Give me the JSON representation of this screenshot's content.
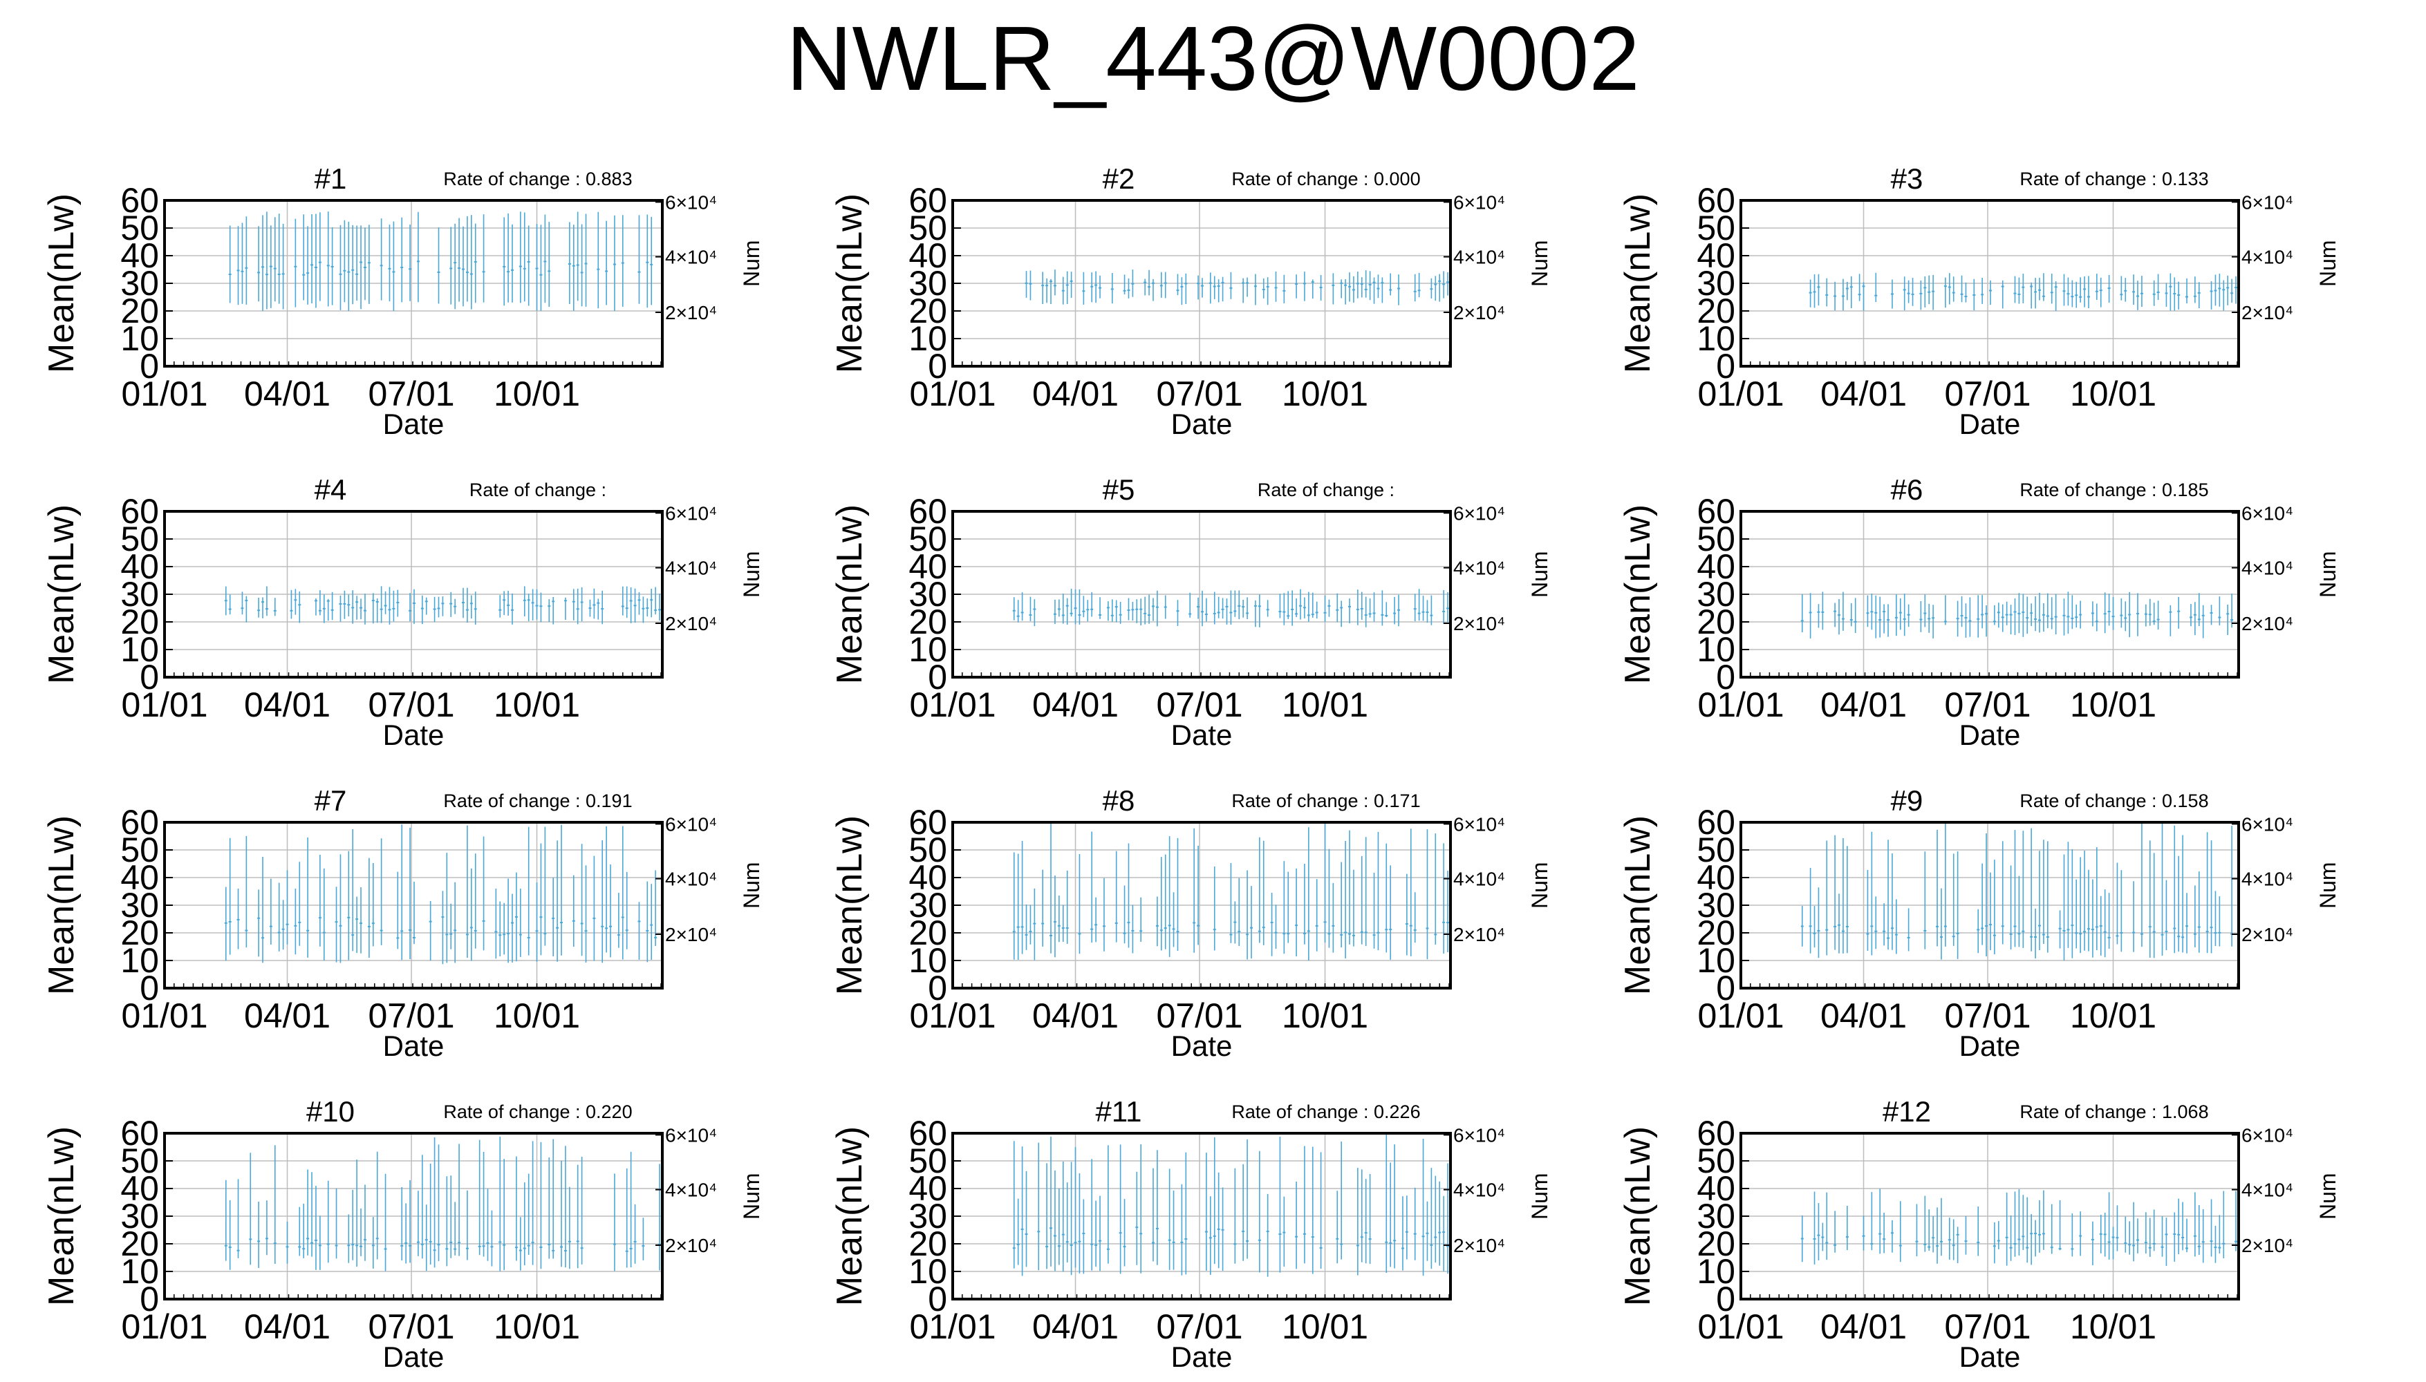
{
  "title": "NWLR_443@W0002",
  "colors": {
    "data": "#4aa8d8",
    "grid": "#bdbdbd",
    "frame": "#000000"
  },
  "chart_data": [
    {
      "type": "line",
      "title": "#1",
      "rate_label": "Rate of change : 0.883",
      "xlabel": "Date",
      "ylabel": "Mean(nLw)",
      "y2label": "Num",
      "xticks": [
        "01/01",
        "04/01",
        "07/01",
        "10/01"
      ],
      "yticks": [
        "0",
        "10",
        "20",
        "30",
        "40",
        "50",
        "60"
      ],
      "y2ticks": [
        "2×10⁴",
        "4×10⁴",
        "6×10⁴"
      ],
      "ylim": [
        0,
        60
      ],
      "grid": true,
      "data_start": "02/15",
      "data_end": "12/31",
      "range_low": [
        20,
        24
      ],
      "range_high": [
        50,
        56
      ],
      "mean": [
        33,
        38
      ]
    },
    {
      "type": "line",
      "title": "#2",
      "rate_label": "Rate of change : 0.000",
      "xlabel": "Date",
      "ylabel": "Mean(nLw)",
      "y2label": "Num",
      "xticks": [
        "01/01",
        "04/01",
        "07/01",
        "10/01"
      ],
      "yticks": [
        "0",
        "10",
        "20",
        "30",
        "40",
        "50",
        "60"
      ],
      "y2ticks": [
        "2×10⁴",
        "4×10⁴",
        "6×10⁴"
      ],
      "ylim": [
        0,
        60
      ],
      "grid": true,
      "data_start": "02/15",
      "data_end": "12/31",
      "range_low": [
        22,
        26
      ],
      "range_high": [
        31,
        35
      ],
      "mean": [
        27,
        31
      ]
    },
    {
      "type": "line",
      "title": "#3",
      "rate_label": "Rate of change : 0.133",
      "xlabel": "Date",
      "ylabel": "Mean(nLw)",
      "y2label": "Num",
      "xticks": [
        "01/01",
        "04/01",
        "07/01",
        "10/01"
      ],
      "yticks": [
        "0",
        "10",
        "20",
        "30",
        "40",
        "50",
        "60"
      ],
      "y2ticks": [
        "2×10⁴",
        "4×10⁴",
        "6×10⁴"
      ],
      "ylim": [
        0,
        60
      ],
      "grid": true,
      "data_start": "02/15",
      "data_end": "12/31",
      "range_low": [
        20,
        24
      ],
      "range_high": [
        30,
        34
      ],
      "mean": [
        25,
        29
      ]
    },
    {
      "type": "line",
      "title": "#4",
      "rate_label": "Rate of change :",
      "xlabel": "Date",
      "ylabel": "Mean(nLw)",
      "y2label": "Num",
      "xticks": [
        "01/01",
        "04/01",
        "07/01",
        "10/01"
      ],
      "yticks": [
        "0",
        "10",
        "20",
        "30",
        "40",
        "50",
        "60"
      ],
      "y2ticks": [
        "2×10⁴",
        "4×10⁴",
        "6×10⁴"
      ],
      "ylim": [
        0,
        60
      ],
      "grid": true,
      "data_start": "02/15",
      "data_end": "12/31",
      "range_low": [
        19,
        23
      ],
      "range_high": [
        28,
        33
      ],
      "mean": [
        24,
        28
      ]
    },
    {
      "type": "line",
      "title": "#5",
      "rate_label": "Rate of change :",
      "xlabel": "Date",
      "ylabel": "Mean(nLw)",
      "y2label": "Num",
      "xticks": [
        "01/01",
        "04/01",
        "07/01",
        "10/01"
      ],
      "yticks": [
        "0",
        "10",
        "20",
        "30",
        "40",
        "50",
        "60"
      ],
      "y2ticks": [
        "2×10⁴",
        "4×10⁴",
        "6×10⁴"
      ],
      "ylim": [
        0,
        60
      ],
      "grid": true,
      "data_start": "02/15",
      "data_end": "12/31",
      "range_low": [
        18,
        22
      ],
      "range_high": [
        27,
        32
      ],
      "mean": [
        22,
        26
      ]
    },
    {
      "type": "line",
      "title": "#6",
      "rate_label": "Rate of change : 0.185",
      "xlabel": "Date",
      "ylabel": "Mean(nLw)",
      "y2label": "Num",
      "xticks": [
        "01/01",
        "04/01",
        "07/01",
        "10/01"
      ],
      "yticks": [
        "0",
        "10",
        "20",
        "30",
        "40",
        "50",
        "60"
      ],
      "y2ticks": [
        "2×10⁴",
        "4×10⁴",
        "6×10⁴"
      ],
      "ylim": [
        0,
        60
      ],
      "grid": true,
      "data_start": "02/15",
      "data_end": "12/31",
      "range_low": [
        14,
        19
      ],
      "range_high": [
        26,
        31
      ],
      "mean": [
        20,
        24
      ]
    },
    {
      "type": "line",
      "title": "#7",
      "rate_label": "Rate of change : 0.191",
      "xlabel": "Date",
      "ylabel": "Mean(nLw)",
      "y2label": "Num",
      "xticks": [
        "01/01",
        "04/01",
        "07/01",
        "10/01"
      ],
      "yticks": [
        "0",
        "10",
        "20",
        "30",
        "40",
        "50",
        "60"
      ],
      "y2ticks": [
        "2×10⁴",
        "4×10⁴",
        "6×10⁴"
      ],
      "ylim": [
        0,
        60
      ],
      "grid": true,
      "data_start": "02/15",
      "data_end": "12/31",
      "range_low": [
        8,
        16
      ],
      "range_high": [
        30,
        60
      ],
      "mean": [
        18,
        26
      ]
    },
    {
      "type": "line",
      "title": "#8",
      "rate_label": "Rate of change : 0.171",
      "xlabel": "Date",
      "ylabel": "Mean(nLw)",
      "y2label": "Num",
      "xticks": [
        "01/01",
        "04/01",
        "07/01",
        "10/01"
      ],
      "yticks": [
        "0",
        "10",
        "20",
        "30",
        "40",
        "50",
        "60"
      ],
      "y2ticks": [
        "2×10⁴",
        "4×10⁴",
        "6×10⁴"
      ],
      "ylim": [
        0,
        60
      ],
      "grid": true,
      "data_start": "02/15",
      "data_end": "12/31",
      "range_low": [
        10,
        17
      ],
      "range_high": [
        30,
        60
      ],
      "mean": [
        19,
        24
      ]
    },
    {
      "type": "line",
      "title": "#9",
      "rate_label": "Rate of change : 0.158",
      "xlabel": "Date",
      "ylabel": "Mean(nLw)",
      "y2label": "Num",
      "xticks": [
        "01/01",
        "04/01",
        "07/01",
        "10/01"
      ],
      "yticks": [
        "0",
        "10",
        "20",
        "30",
        "40",
        "50",
        "60"
      ],
      "y2ticks": [
        "2×10⁴",
        "4×10⁴",
        "6×10⁴"
      ],
      "ylim": [
        0,
        60
      ],
      "grid": true,
      "data_start": "02/15",
      "data_end": "12/31",
      "range_low": [
        10,
        16
      ],
      "range_high": [
        28,
        60
      ],
      "mean": [
        18,
        23
      ]
    },
    {
      "type": "line",
      "title": "#10",
      "rate_label": "Rate of change : 0.220",
      "xlabel": "Date",
      "ylabel": "Mean(nLw)",
      "y2label": "Num",
      "xticks": [
        "01/01",
        "04/01",
        "07/01",
        "10/01"
      ],
      "yticks": [
        "0",
        "10",
        "20",
        "30",
        "40",
        "50",
        "60"
      ],
      "y2ticks": [
        "2×10⁴",
        "4×10⁴",
        "6×10⁴"
      ],
      "ylim": [
        0,
        60
      ],
      "grid": true,
      "data_start": "02/15",
      "data_end": "12/31",
      "range_low": [
        10,
        16
      ],
      "range_high": [
        28,
        60
      ],
      "mean": [
        17,
        22
      ]
    },
    {
      "type": "line",
      "title": "#11",
      "rate_label": "Rate of change : 0.226",
      "xlabel": "Date",
      "ylabel": "Mean(nLw)",
      "y2label": "Num",
      "xticks": [
        "01/01",
        "04/01",
        "07/01",
        "10/01"
      ],
      "yticks": [
        "0",
        "10",
        "20",
        "30",
        "40",
        "50",
        "60"
      ],
      "y2ticks": [
        "2×10⁴",
        "4×10⁴",
        "6×10⁴"
      ],
      "ylim": [
        0,
        60
      ],
      "grid": true,
      "data_start": "02/15",
      "data_end": "12/31",
      "range_low": [
        8,
        15
      ],
      "range_high": [
        35,
        60
      ],
      "mean": [
        18,
        26
      ]
    },
    {
      "type": "line",
      "title": "#12",
      "rate_label": "Rate of change : 1.068",
      "xlabel": "Date",
      "ylabel": "Mean(nLw)",
      "y2label": "Num",
      "xticks": [
        "01/01",
        "04/01",
        "07/01",
        "10/01"
      ],
      "yticks": [
        "0",
        "10",
        "20",
        "30",
        "40",
        "50",
        "60"
      ],
      "y2ticks": [
        "2×10⁴",
        "4×10⁴",
        "6×10⁴"
      ],
      "ylim": [
        0,
        60
      ],
      "grid": true,
      "data_start": "02/15",
      "data_end": "12/31",
      "range_low": [
        12,
        18
      ],
      "range_high": [
        26,
        40
      ],
      "mean": [
        18,
        24
      ]
    }
  ]
}
